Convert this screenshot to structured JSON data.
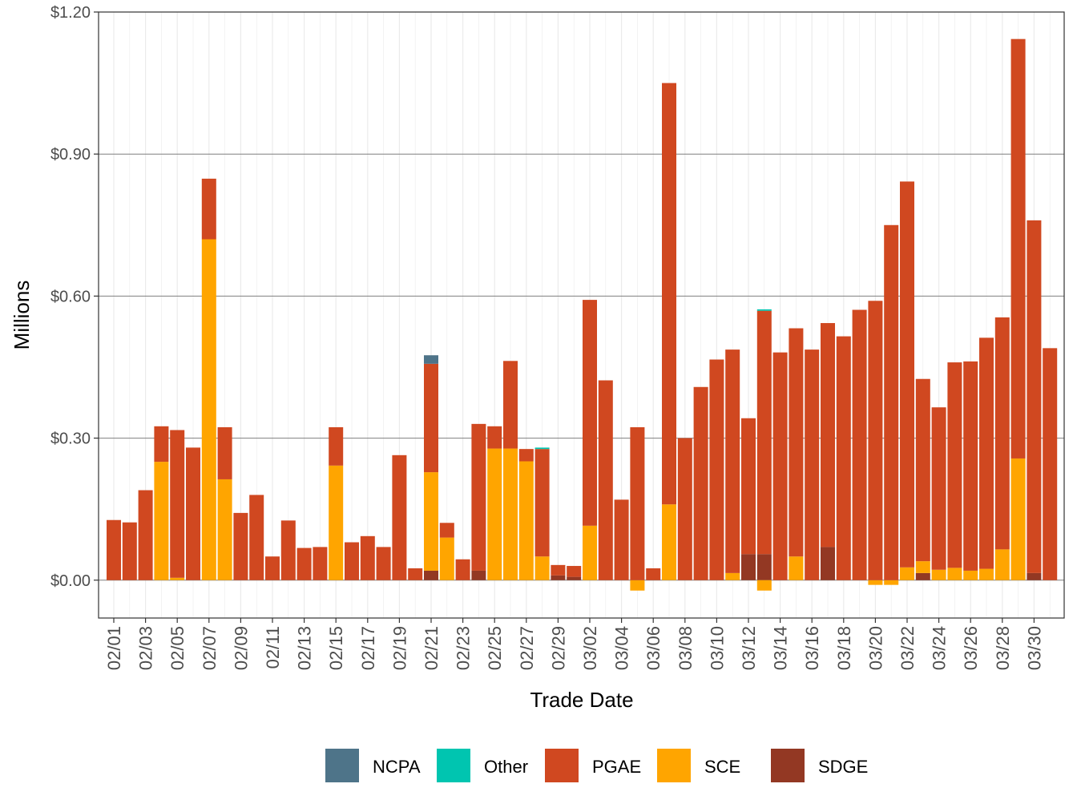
{
  "chart_data": {
    "type": "stacked-bar",
    "x_label": "Trade Date",
    "y_label": "Millions",
    "categories": [
      "02/01",
      null,
      "02/03",
      null,
      "02/05",
      null,
      "02/07",
      null,
      "02/09",
      null,
      "02/11",
      null,
      "02/13",
      null,
      "02/15",
      null,
      "02/17",
      null,
      "02/19",
      null,
      "02/21",
      null,
      "02/23",
      null,
      "02/25",
      null,
      "02/27",
      null,
      "02/29",
      null,
      "03/02",
      null,
      "03/04",
      null,
      "03/06",
      null,
      "03/08",
      null,
      "03/10",
      null,
      "03/12",
      null,
      "03/14",
      null,
      "03/16",
      null,
      "03/18",
      null,
      "03/20",
      null,
      "03/22",
      null,
      "03/24",
      null,
      "03/26",
      null,
      "03/28",
      null,
      "03/30",
      null
    ],
    "series": [
      {
        "name": "NCPA",
        "color": "#4e7489",
        "values": [
          0,
          0,
          0,
          0,
          0,
          0,
          0,
          0,
          0,
          0,
          0,
          0,
          0,
          0,
          0,
          0,
          0,
          0,
          0,
          0,
          0.018,
          0,
          0,
          0,
          0,
          0,
          0,
          0,
          0,
          0,
          0,
          0,
          0,
          0,
          0,
          0,
          0,
          0,
          0,
          0,
          0,
          0,
          0,
          0,
          0,
          0,
          0,
          0,
          0,
          0,
          0,
          0,
          0,
          0,
          0,
          0,
          0,
          0,
          0,
          0
        ]
      },
      {
        "name": "Other",
        "color": "#00c5b0",
        "values": [
          0,
          0,
          0,
          0,
          0,
          0,
          0,
          0,
          0,
          0,
          0,
          0,
          0,
          0,
          0,
          0,
          0,
          0,
          0,
          0,
          0,
          0,
          0,
          0,
          0,
          0,
          0,
          0.003,
          0,
          0,
          0,
          0,
          0,
          0,
          0,
          0,
          0,
          0,
          0,
          0,
          0,
          0.003,
          0,
          0,
          0,
          0,
          0,
          0,
          0,
          0,
          0,
          0,
          0,
          0,
          0,
          0,
          0,
          0,
          0,
          0
        ]
      },
      {
        "name": "PGAE",
        "color": "#d04820",
        "values": [
          0.127,
          0.122,
          0.19,
          0.075,
          0.312,
          0.28,
          0.128,
          0.11,
          0.142,
          0.18,
          0.05,
          0.126,
          0.068,
          0.07,
          0.081,
          0.08,
          0.093,
          0.07,
          0.264,
          0.025,
          0.229,
          0.031,
          0.044,
          0.31,
          0.047,
          0.185,
          0.026,
          0.227,
          0.022,
          0.023,
          0.477,
          0.422,
          0.17,
          0.323,
          0.025,
          0.89,
          0.3,
          0.408,
          0.466,
          0.472,
          0.287,
          0.514,
          0.481,
          0.482,
          0.487,
          0.473,
          0.515,
          0.571,
          0.59,
          0.75,
          0.815,
          0.385,
          0.343,
          0.434,
          0.442,
          0.488,
          0.49,
          0.886,
          0.745,
          0.49
        ]
      },
      {
        "name": "SCE",
        "color": "#ffa500",
        "values": [
          0,
          0,
          0,
          0.25,
          0.005,
          0,
          0.72,
          0.213,
          0,
          0,
          0,
          0,
          0,
          0,
          0.242,
          0,
          0,
          0,
          0,
          0,
          0.208,
          0.09,
          0,
          0,
          0.278,
          0.278,
          0.251,
          0.05,
          0,
          0,
          0.115,
          0,
          0,
          -0.022,
          0,
          0.16,
          0,
          0,
          0,
          0.015,
          0,
          -0.022,
          0,
          0.05,
          0,
          0,
          0,
          0,
          -0.01,
          -0.01,
          0.027,
          0.025,
          0.022,
          0.026,
          0.02,
          0.024,
          0.065,
          0.257,
          0,
          0
        ]
      },
      {
        "name": "SDGE",
        "color": "#933823",
        "values": [
          0,
          0,
          0,
          0,
          0,
          0,
          0,
          0,
          0,
          0,
          0,
          0,
          0,
          0,
          0,
          0,
          0,
          0,
          0,
          0,
          0.02,
          0,
          0,
          0.02,
          0,
          0,
          0,
          0,
          0.01,
          0.007,
          0,
          0,
          0,
          0,
          0,
          0,
          0,
          0,
          0,
          0,
          0.055,
          0.055,
          0,
          0,
          0,
          0.07,
          0,
          0,
          0,
          0,
          0,
          0.015,
          0,
          0,
          0,
          0,
          0,
          0,
          0.015,
          0
        ]
      }
    ],
    "ylim": [
      -0.08,
      1.2
    ],
    "yticks": [
      {
        "value": 0,
        "label": "$0.00"
      },
      {
        "value": 0.3,
        "label": "$0.30"
      },
      {
        "value": 0.6,
        "label": "$0.60"
      },
      {
        "value": 0.9,
        "label": "$0.90"
      },
      {
        "value": 1.2,
        "label": "$1.20"
      }
    ],
    "grid": true,
    "legend_position": "bottom"
  }
}
